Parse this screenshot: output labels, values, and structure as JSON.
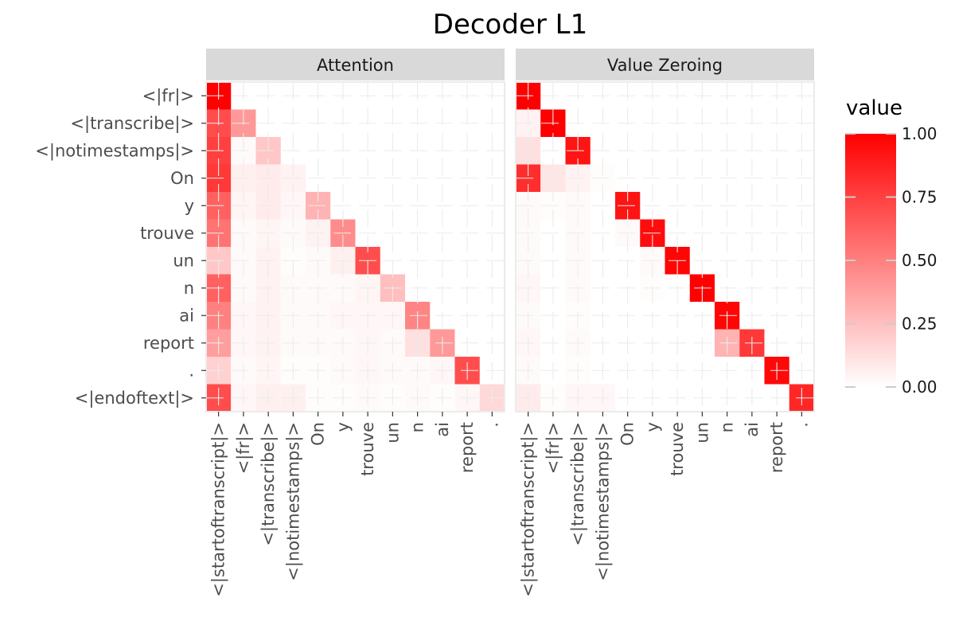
{
  "chart_data": {
    "type": "heatmap",
    "title": "Decoder L1",
    "x_tokens": [
      "<|startoftranscript|>",
      "<|fr|>",
      "<|transcribe|>",
      "<|notimestamps|>",
      "On",
      "y",
      "trouve",
      "un",
      "n",
      "ai",
      "report",
      "."
    ],
    "y_tokens": [
      "<|fr|>",
      "<|transcribe|>",
      "<|notimestamps|>",
      "On",
      "y",
      "trouve",
      "un",
      "n",
      "ai",
      "report",
      ".",
      "<|endoftext|>"
    ],
    "color_scale": {
      "low": "#ffffff",
      "high": "#ff0000",
      "limits": [
        0,
        1
      ]
    },
    "legend": {
      "title": "value",
      "ticks": [
        "1.00",
        "0.75",
        "0.50",
        "0.25",
        "0.00"
      ],
      "tick_values": [
        1.0,
        0.75,
        0.5,
        0.25,
        0.0
      ],
      "placement": "right"
    },
    "panels": [
      {
        "name": "Attention",
        "values": [
          [
            1.0
          ],
          [
            0.7,
            0.4
          ],
          [
            0.75,
            0.02,
            0.22
          ],
          [
            0.78,
            0.06,
            0.08,
            0.05
          ],
          [
            0.62,
            0.04,
            0.08,
            0.03,
            0.3
          ],
          [
            0.55,
            0.02,
            0.04,
            0.02,
            0.05,
            0.45
          ],
          [
            0.22,
            0.02,
            0.05,
            0.01,
            0.02,
            0.06,
            0.7
          ],
          [
            0.62,
            0.02,
            0.05,
            0.02,
            0.02,
            0.02,
            0.04,
            0.25
          ],
          [
            0.5,
            0.03,
            0.05,
            0.02,
            0.02,
            0.03,
            0.03,
            0.03,
            0.48
          ],
          [
            0.38,
            0.03,
            0.05,
            0.02,
            0.02,
            0.02,
            0.03,
            0.02,
            0.12,
            0.4
          ],
          [
            0.18,
            0.02,
            0.04,
            0.01,
            0.01,
            0.02,
            0.03,
            0.02,
            0.02,
            0.03,
            0.7
          ],
          [
            0.7,
            0.03,
            0.06,
            0.06,
            0.01,
            0.01,
            0.02,
            0.01,
            0.02,
            0.01,
            0.03,
            0.15
          ]
        ]
      },
      {
        "name": "Value Zeroing",
        "values": [
          [
            1.0
          ],
          [
            0.05,
            1.0
          ],
          [
            0.12,
            0.0,
            0.92
          ],
          [
            0.82,
            0.1,
            0.05,
            0.01
          ],
          [
            0.02,
            0.01,
            0.02,
            0.0,
            0.92
          ],
          [
            0.02,
            0.0,
            0.02,
            0.0,
            0.02,
            0.95
          ],
          [
            0.02,
            0.0,
            0.02,
            0.0,
            0.0,
            0.02,
            0.98
          ],
          [
            0.03,
            0.0,
            0.02,
            0.0,
            0.0,
            0.01,
            0.0,
            1.0
          ],
          [
            0.02,
            0.0,
            0.01,
            0.0,
            0.0,
            0.0,
            0.0,
            0.0,
            0.98
          ],
          [
            0.03,
            0.0,
            0.02,
            0.0,
            0.0,
            0.0,
            0.0,
            0.0,
            0.3,
            0.78
          ],
          [
            0.02,
            0.0,
            0.01,
            0.0,
            0.0,
            0.0,
            0.0,
            0.0,
            0.0,
            0.0,
            0.97
          ],
          [
            0.08,
            0.01,
            0.03,
            0.03,
            0.0,
            0.0,
            0.0,
            0.0,
            0.0,
            0.0,
            0.0,
            0.85
          ]
        ]
      }
    ]
  }
}
